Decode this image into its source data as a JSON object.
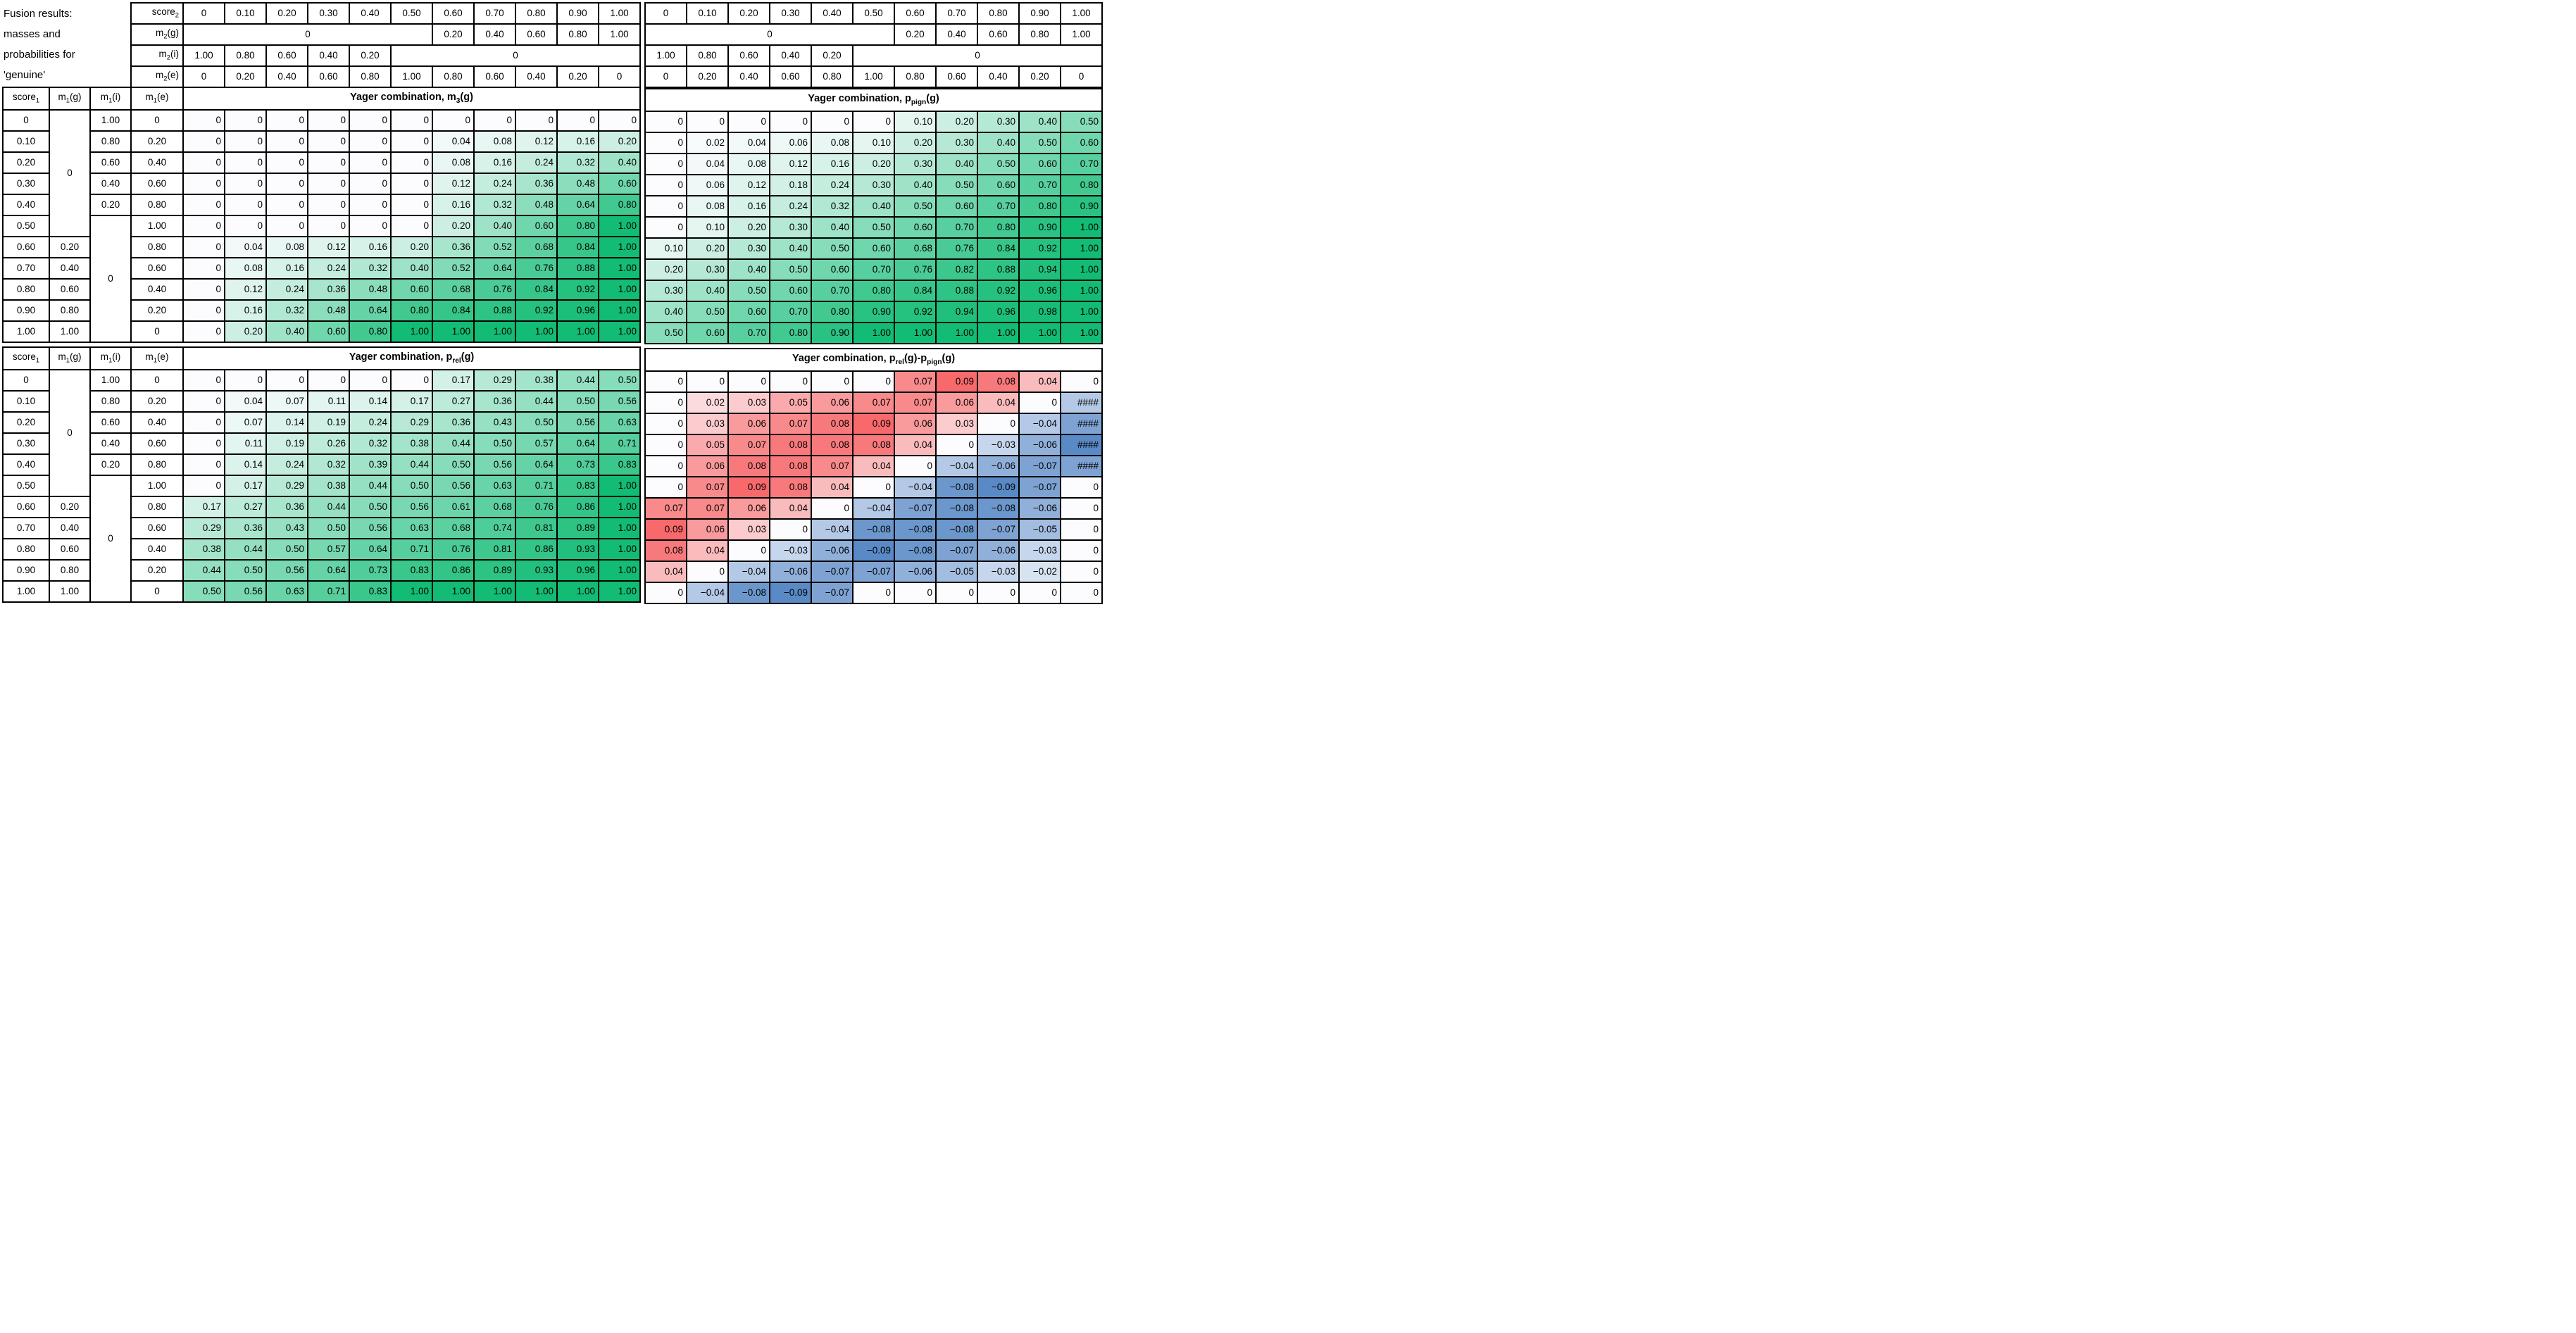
{
  "caption": {
    "lines": [
      "Fusion results:",
      "masses and",
      "probabilities for",
      "'genuine'"
    ]
  },
  "axis": {
    "score2_label": "score_{2}",
    "m2_labels": [
      "m_{2}(g)",
      "m_{2}(i)",
      "m_{2}(e)"
    ],
    "score1_label": "score_{1}",
    "m1_labels": [
      "m_{1}(g)",
      "m_{1}(i)",
      "m_{1}(e)"
    ],
    "score_values": [
      "0",
      "0.10",
      "0.20",
      "0.30",
      "0.40",
      "0.50",
      "0.60",
      "0.70",
      "0.80",
      "0.90",
      "1.00"
    ],
    "merged_zero": "0",
    "merged_zero_span": 6,
    "mg_values": [
      "0.20",
      "0.40",
      "0.60",
      "0.80",
      "1.00"
    ],
    "mi_values": [
      "1.00",
      "0.80",
      "0.60",
      "0.40",
      "0.20"
    ],
    "me_values": [
      "0",
      "0.20",
      "0.40",
      "0.60",
      "0.80",
      "1.00",
      "0.80",
      "0.60",
      "0.40",
      "0.20",
      "0"
    ]
  },
  "quadrants": [
    {
      "id": "m3g",
      "title": "Yager combination, m_{3}(g)",
      "scale": "green",
      "rows": [
        [
          0,
          0,
          0,
          0,
          0,
          0,
          0,
          0,
          0,
          0,
          0
        ],
        [
          0,
          0,
          0,
          0,
          0,
          0,
          0.04,
          0.08,
          0.12,
          0.16,
          0.2
        ],
        [
          0,
          0,
          0,
          0,
          0,
          0,
          0.08,
          0.16,
          0.24,
          0.32,
          0.4
        ],
        [
          0,
          0,
          0,
          0,
          0,
          0,
          0.12,
          0.24,
          0.36,
          0.48,
          0.6
        ],
        [
          0,
          0,
          0,
          0,
          0,
          0,
          0.16,
          0.32,
          0.48,
          0.64,
          0.8
        ],
        [
          0,
          0,
          0,
          0,
          0,
          0,
          0.2,
          0.4,
          0.6,
          0.8,
          1.0
        ],
        [
          0,
          0.04,
          0.08,
          0.12,
          0.16,
          0.2,
          0.36,
          0.52,
          0.68,
          0.84,
          1.0
        ],
        [
          0,
          0.08,
          0.16,
          0.24,
          0.32,
          0.4,
          0.52,
          0.64,
          0.76,
          0.88,
          1.0
        ],
        [
          0,
          0.12,
          0.24,
          0.36,
          0.48,
          0.6,
          0.68,
          0.76,
          0.84,
          0.92,
          1.0
        ],
        [
          0,
          0.16,
          0.32,
          0.48,
          0.64,
          0.8,
          0.84,
          0.88,
          0.92,
          0.96,
          1.0
        ],
        [
          0,
          0.2,
          0.4,
          0.6,
          0.8,
          1.0,
          1.0,
          1.0,
          1.0,
          1.0,
          1.0
        ]
      ]
    },
    {
      "id": "ppign",
      "title": "Yager combination, p_{pign}(g)",
      "scale": "green",
      "rows": [
        [
          0,
          0,
          0,
          0,
          0,
          0,
          0.1,
          0.2,
          0.3,
          0.4,
          0.5
        ],
        [
          0,
          0.02,
          0.04,
          0.06,
          0.08,
          0.1,
          0.2,
          0.3,
          0.4,
          0.5,
          0.6
        ],
        [
          0,
          0.04,
          0.08,
          0.12,
          0.16,
          0.2,
          0.3,
          0.4,
          0.5,
          0.6,
          0.7
        ],
        [
          0,
          0.06,
          0.12,
          0.18,
          0.24,
          0.3,
          0.4,
          0.5,
          0.6,
          0.7,
          0.8
        ],
        [
          0,
          0.08,
          0.16,
          0.24,
          0.32,
          0.4,
          0.5,
          0.6,
          0.7,
          0.8,
          0.9
        ],
        [
          0,
          0.1,
          0.2,
          0.3,
          0.4,
          0.5,
          0.6,
          0.7,
          0.8,
          0.9,
          1.0
        ],
        [
          0.1,
          0.2,
          0.3,
          0.4,
          0.5,
          0.6,
          0.68,
          0.76,
          0.84,
          0.92,
          1.0
        ],
        [
          0.2,
          0.3,
          0.4,
          0.5,
          0.6,
          0.7,
          0.76,
          0.82,
          0.88,
          0.94,
          1.0
        ],
        [
          0.3,
          0.4,
          0.5,
          0.6,
          0.7,
          0.8,
          0.84,
          0.88,
          0.92,
          0.96,
          1.0
        ],
        [
          0.4,
          0.5,
          0.6,
          0.7,
          0.8,
          0.9,
          0.92,
          0.94,
          0.96,
          0.98,
          1.0
        ],
        [
          0.5,
          0.6,
          0.7,
          0.8,
          0.9,
          1.0,
          1.0,
          1.0,
          1.0,
          1.0,
          1.0
        ]
      ]
    },
    {
      "id": "prel",
      "title": "Yager combination, p_{rel}(g)",
      "scale": "green",
      "rows": [
        [
          0,
          0,
          0,
          0,
          0,
          0,
          0.17,
          0.29,
          0.38,
          0.44,
          0.5
        ],
        [
          0,
          0.04,
          0.07,
          0.11,
          0.14,
          0.17,
          0.27,
          0.36,
          0.44,
          0.5,
          0.56
        ],
        [
          0,
          0.07,
          0.14,
          0.19,
          0.24,
          0.29,
          0.36,
          0.43,
          0.5,
          0.56,
          0.63
        ],
        [
          0,
          0.11,
          0.19,
          0.26,
          0.32,
          0.38,
          0.44,
          0.5,
          0.57,
          0.64,
          0.71
        ],
        [
          0,
          0.14,
          0.24,
          0.32,
          0.39,
          0.44,
          0.5,
          0.56,
          0.64,
          0.73,
          0.83
        ],
        [
          0,
          0.17,
          0.29,
          0.38,
          0.44,
          0.5,
          0.56,
          0.63,
          0.71,
          0.83,
          1.0
        ],
        [
          0.17,
          0.27,
          0.36,
          0.44,
          0.5,
          0.56,
          0.61,
          0.68,
          0.76,
          0.86,
          1.0
        ],
        [
          0.29,
          0.36,
          0.43,
          0.5,
          0.56,
          0.63,
          0.68,
          0.74,
          0.81,
          0.89,
          1.0
        ],
        [
          0.38,
          0.44,
          0.5,
          0.57,
          0.64,
          0.71,
          0.76,
          0.81,
          0.86,
          0.93,
          1.0
        ],
        [
          0.44,
          0.5,
          0.56,
          0.64,
          0.73,
          0.83,
          0.86,
          0.89,
          0.93,
          0.96,
          1.0
        ],
        [
          0.5,
          0.56,
          0.63,
          0.71,
          0.83,
          1.0,
          1.0,
          1.0,
          1.0,
          1.0,
          1.0
        ]
      ]
    },
    {
      "id": "diff",
      "title": "Yager combination, p_{rel}(g)-p_{pign}(g)",
      "scale": "diverging",
      "rows": [
        [
          0,
          0,
          0,
          0,
          0,
          0,
          0.07,
          0.09,
          0.08,
          0.04,
          0
        ],
        [
          0,
          0.02,
          0.03,
          0.05,
          0.06,
          0.07,
          0.07,
          0.06,
          0.04,
          0,
          {
            "t": "####",
            "v": -0.04
          }
        ],
        [
          0,
          0.03,
          0.06,
          0.07,
          0.08,
          0.09,
          0.06,
          0.03,
          0,
          -0.04,
          {
            "t": "####",
            "v": -0.07
          }
        ],
        [
          0,
          0.05,
          0.07,
          0.08,
          0.08,
          0.08,
          0.04,
          0,
          -0.03,
          -0.06,
          {
            "t": "####",
            "v": -0.09
          }
        ],
        [
          0,
          0.06,
          0.08,
          0.08,
          0.07,
          0.04,
          0,
          -0.04,
          -0.06,
          -0.07,
          {
            "t": "####",
            "v": -0.07
          }
        ],
        [
          0,
          0.07,
          0.09,
          0.08,
          0.04,
          0,
          -0.04,
          -0.08,
          -0.09,
          -0.07,
          0
        ],
        [
          0.07,
          0.07,
          0.06,
          0.04,
          0,
          -0.04,
          -0.07,
          -0.08,
          -0.08,
          -0.06,
          0
        ],
        [
          0.09,
          0.06,
          0.03,
          0,
          -0.04,
          -0.08,
          -0.08,
          -0.08,
          -0.07,
          -0.05,
          0
        ],
        [
          0.08,
          0.04,
          0,
          -0.03,
          -0.06,
          -0.09,
          -0.08,
          -0.07,
          -0.06,
          -0.03,
          0
        ],
        [
          0.04,
          0,
          -0.04,
          -0.06,
          -0.07,
          -0.07,
          -0.06,
          -0.05,
          -0.03,
          -0.02,
          0
        ],
        [
          0,
          -0.04,
          -0.08,
          -0.09,
          -0.07,
          0,
          0,
          0,
          0,
          0,
          0
        ]
      ]
    }
  ],
  "colors": {
    "white": "#FCFCFF",
    "green": "#12BC74",
    "red": "#F8696B",
    "blue": "#5A8AC6",
    "border": "#000000"
  },
  "scales": {
    "green_min": 0,
    "green_max": 1,
    "div_max": 0.09,
    "div_min": -0.09
  }
}
